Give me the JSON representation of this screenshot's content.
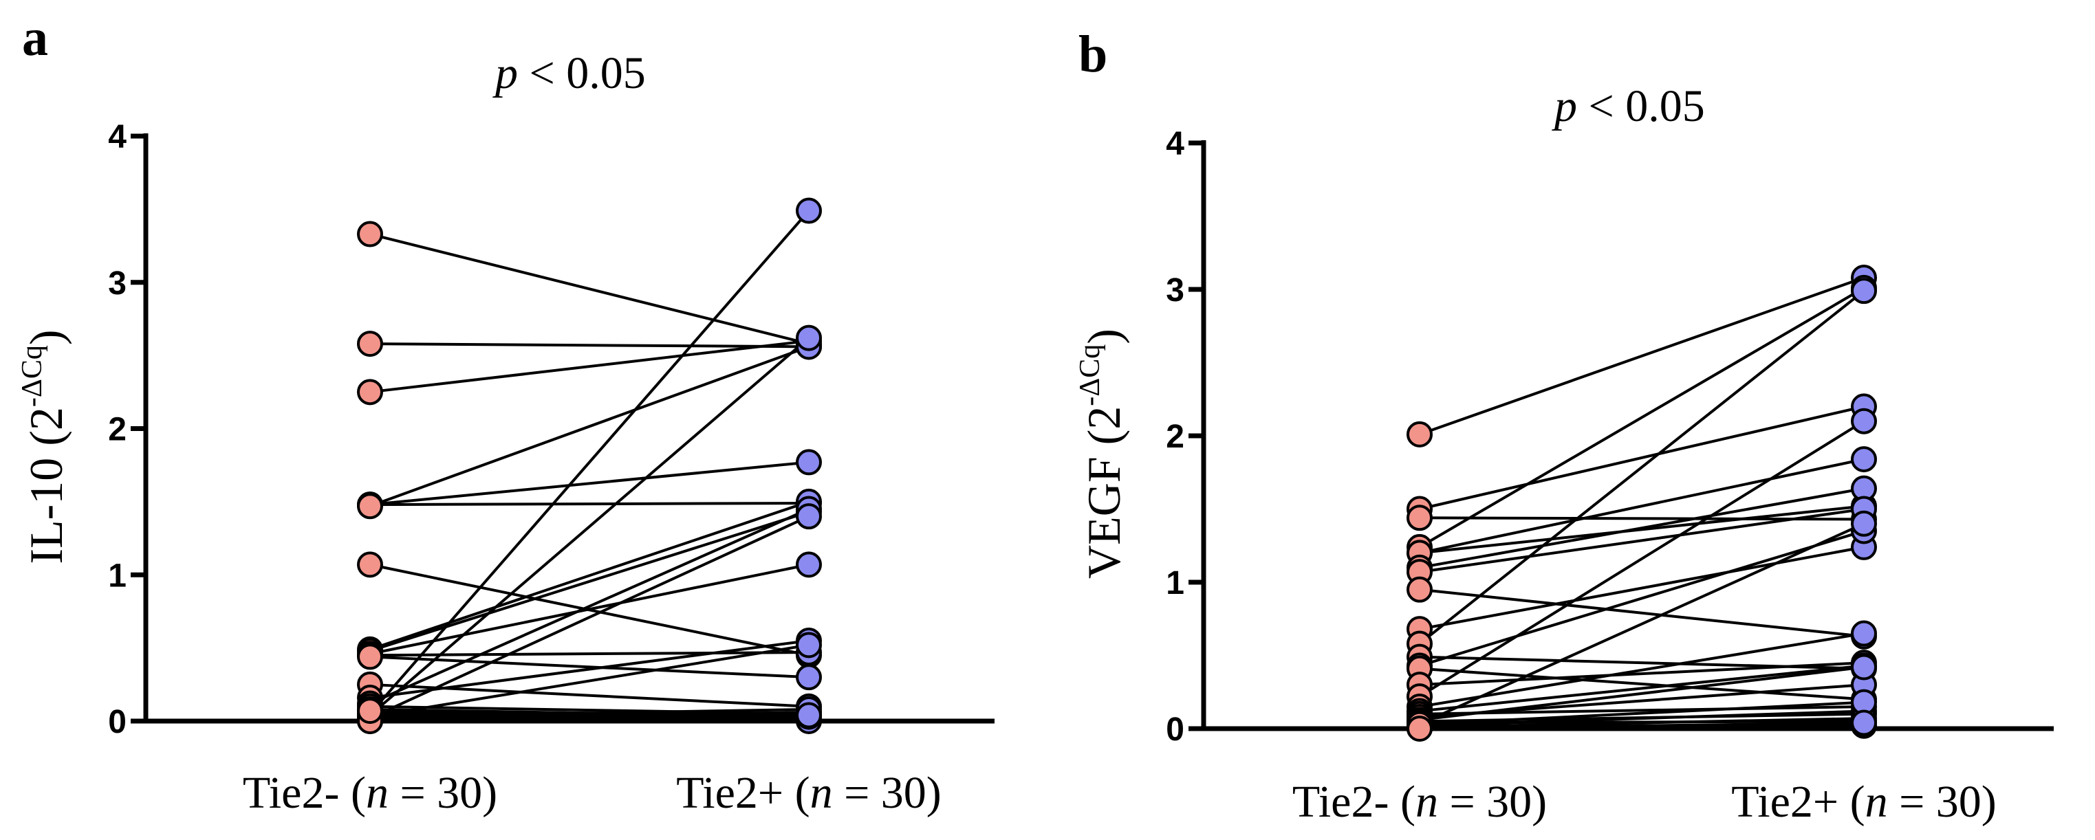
{
  "chart_data": [
    {
      "type": "scatter",
      "subtype": "paired-dot",
      "panel_label": "a",
      "title_italic": "p",
      "title_rest": " < 0.05",
      "ylabel_main": "IL-10 (2",
      "ylabel_sup": "-ΔCq",
      "ylabel_close": ")",
      "ylim": [
        0,
        4
      ],
      "yticks": [
        "0",
        "1",
        "2",
        "3",
        "4"
      ],
      "categories": [
        {
          "pre": "Tie2- (",
          "italic": "n",
          "post": " = 30)"
        },
        {
          "pre": "Tie2+ (",
          "italic": "n",
          "post": " = 30)"
        }
      ],
      "colors": {
        "Tie2-": "#f2948a",
        "Tie2+": "#8a8af0"
      },
      "pairs": [
        [
          3.33,
          2.58
        ],
        [
          2.58,
          2.56
        ],
        [
          2.25,
          2.6
        ],
        [
          1.48,
          1.77
        ],
        [
          1.48,
          1.49
        ],
        [
          1.47,
          2.56
        ],
        [
          1.07,
          0.45
        ],
        [
          0.49,
          1.5
        ],
        [
          0.48,
          1.43
        ],
        [
          0.46,
          1.07
        ],
        [
          0.45,
          0.47
        ],
        [
          0.44,
          0.3
        ],
        [
          0.25,
          0.1
        ],
        [
          0.16,
          0.55
        ],
        [
          0.12,
          1.45
        ],
        [
          0.1,
          0.05
        ],
        [
          0.08,
          0.03
        ],
        [
          0.05,
          3.49
        ],
        [
          0.04,
          2.62
        ],
        [
          0.02,
          1.4
        ],
        [
          0.03,
          0.52
        ],
        [
          0.06,
          0.02
        ],
        [
          0.01,
          0.04
        ],
        [
          0.02,
          0.06
        ],
        [
          0.0,
          0.02
        ],
        [
          0.01,
          0.01
        ],
        [
          0.03,
          0.08
        ],
        [
          0.05,
          0.0
        ],
        [
          0.0,
          0.03
        ],
        [
          0.07,
          0.04
        ]
      ]
    },
    {
      "type": "scatter",
      "subtype": "paired-dot",
      "panel_label": "b",
      "title_italic": "p",
      "title_rest": " < 0.05",
      "ylabel_main": "VEGF (2",
      "ylabel_sup": "-ΔCq",
      "ylabel_close": ")",
      "ylim": [
        0,
        4
      ],
      "yticks": [
        "0",
        "1",
        "2",
        "3",
        "4"
      ],
      "categories": [
        {
          "pre": "Tie2- (",
          "italic": "n",
          "post": " = 30)"
        },
        {
          "pre": "Tie2+ (",
          "italic": "n",
          "post": " = 30)"
        }
      ],
      "colors": {
        "Tie2-": "#f2948a",
        "Tie2+": "#8a8af0"
      },
      "pairs": [
        [
          2.01,
          3.08
        ],
        [
          1.5,
          2.2
        ],
        [
          1.44,
          1.43
        ],
        [
          1.24,
          3.01
        ],
        [
          1.2,
          1.52
        ],
        [
          1.2,
          1.84
        ],
        [
          1.1,
          1.64
        ],
        [
          1.07,
          1.5
        ],
        [
          0.95,
          0.63
        ],
        [
          0.68,
          1.24
        ],
        [
          0.58,
          2.99
        ],
        [
          0.49,
          0.41
        ],
        [
          0.43,
          1.35
        ],
        [
          0.41,
          0.2
        ],
        [
          0.3,
          0.45
        ],
        [
          0.22,
          2.1
        ],
        [
          0.15,
          0.65
        ],
        [
          0.12,
          0.43
        ],
        [
          0.1,
          0.15
        ],
        [
          0.08,
          0.3
        ],
        [
          0.06,
          0.42
        ],
        [
          0.05,
          0.1
        ],
        [
          0.04,
          0.05
        ],
        [
          0.03,
          1.4
        ],
        [
          0.02,
          0.02
        ],
        [
          0.02,
          0.12
        ],
        [
          0.01,
          0.07
        ],
        [
          0.01,
          0.03
        ],
        [
          0.03,
          0.18
        ],
        [
          0.0,
          0.04
        ]
      ]
    }
  ]
}
